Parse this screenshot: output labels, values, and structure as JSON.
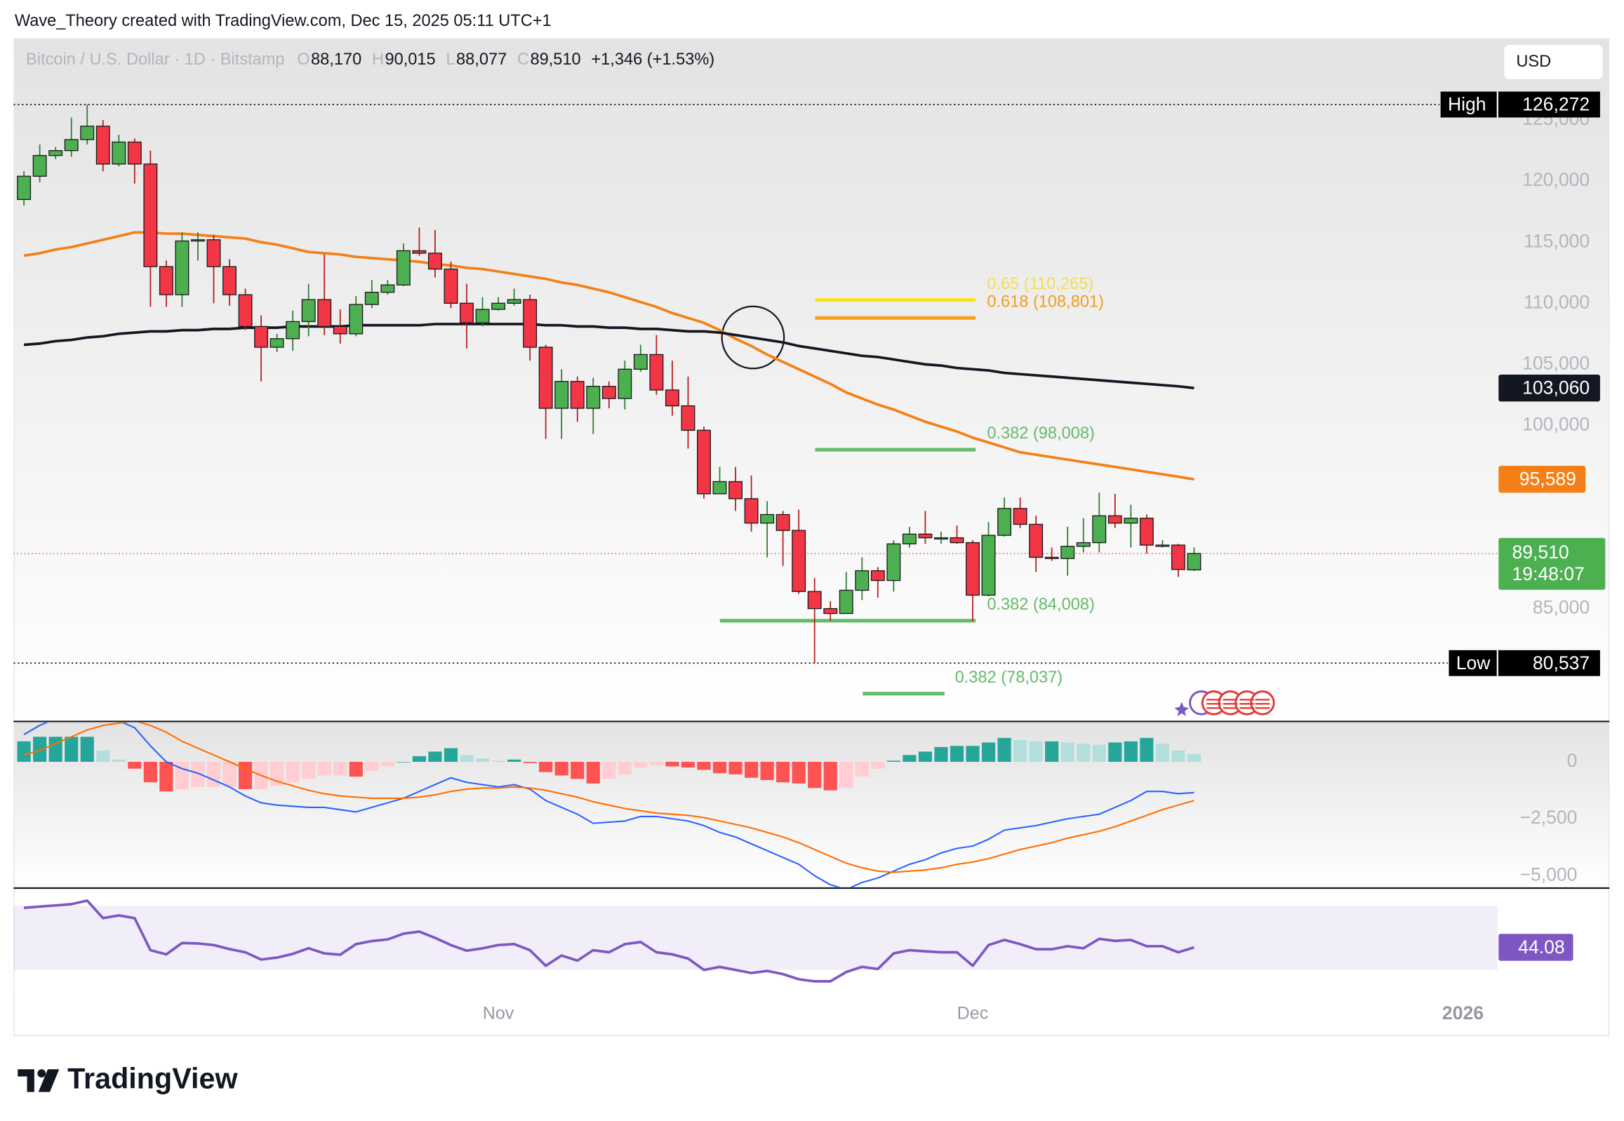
{
  "header": "Wave_Theory created with TradingView.com, Dec 15, 2025 05:11 UTC+1",
  "currency_button": "USD",
  "brand": "TradingView",
  "chart_data": [
    {
      "type": "candlestick",
      "title": "Bitcoin / U.S. Dollar · 1D · Bitstamp",
      "legend_items": [
        {
          "key": "O",
          "value": "88,170"
        },
        {
          "key": "H",
          "value": "90,015"
        },
        {
          "key": "L",
          "value": "88,077"
        },
        {
          "key": "C",
          "value": "89,510"
        }
      ],
      "change": "+1,346 (+1.53%)",
      "categories": [
        null,
        null,
        null,
        null,
        null,
        null,
        null,
        null,
        null,
        null,
        null,
        null,
        null,
        null,
        null,
        null,
        null,
        null,
        null,
        null,
        null,
        null,
        null,
        null,
        null,
        null,
        null,
        null,
        null,
        null,
        "Nov",
        null,
        null,
        null,
        null,
        null,
        null,
        null,
        null,
        null,
        null,
        null,
        null,
        null,
        null,
        null,
        null,
        null,
        null,
        null,
        null,
        null,
        null,
        null,
        null,
        null,
        null,
        null,
        null,
        null,
        "Dec",
        null,
        null,
        null,
        null,
        null,
        null,
        null,
        null,
        null,
        null,
        null,
        null,
        null,
        null
      ],
      "extra_x_label": "2026",
      "open": [
        118500,
        120400,
        122100,
        122500,
        123400,
        124500,
        121400,
        123200,
        121400,
        113000,
        110700,
        115100,
        115200,
        113000,
        110700,
        108100,
        106400,
        107100,
        108500,
        110300,
        108100,
        107500,
        109900,
        110900,
        111500,
        114300,
        114100,
        112800,
        110000,
        108400,
        109500,
        110000,
        110300,
        106400,
        101400,
        103600,
        101400,
        103200,
        102200,
        104600,
        105800,
        102900,
        101600,
        99600,
        94400,
        95400,
        94000,
        92000,
        92700,
        91400,
        86400,
        85000,
        84600,
        86500,
        88100,
        87300,
        90300,
        91100,
        90800,
        90800,
        90400,
        86100,
        91000,
        93200,
        91900,
        89200,
        89100,
        90100,
        90400,
        92600,
        92000,
        92400,
        90200,
        90200,
        88170
      ],
      "high": [
        120800,
        123000,
        122800,
        125200,
        126272,
        125000,
        123800,
        123500,
        122500,
        113500,
        115800,
        115800,
        115600,
        113600,
        111200,
        109000,
        107500,
        109400,
        111600,
        114000,
        109500,
        110600,
        111900,
        111900,
        114900,
        116200,
        116000,
        113400,
        111600,
        110500,
        110500,
        111200,
        110700,
        106600,
        104600,
        104000,
        103900,
        103600,
        105300,
        106600,
        107400,
        105300,
        104000,
        99900,
        96600,
        96600,
        95900,
        93800,
        93000,
        93100,
        87500,
        85600,
        88000,
        89200,
        88400,
        90600,
        91700,
        93000,
        91300,
        91800,
        90600,
        92100,
        94100,
        94100,
        92600,
        90000,
        91700,
        92400,
        94500,
        94400,
        93500,
        92700,
        90600,
        90300,
        90015
      ],
      "low": [
        118000,
        119900,
        121800,
        122000,
        123000,
        120800,
        121200,
        119800,
        109700,
        109700,
        109700,
        113500,
        110000,
        109800,
        107800,
        103600,
        106000,
        106100,
        107300,
        107400,
        106700,
        107300,
        109600,
        110700,
        111400,
        113900,
        112100,
        109600,
        106300,
        108100,
        109400,
        109800,
        105300,
        98900,
        98900,
        100300,
        99300,
        101400,
        101300,
        104400,
        102500,
        100800,
        98100,
        94000,
        94400,
        93000,
        91300,
        89200,
        88500,
        86200,
        80537,
        84000,
        84600,
        85700,
        85900,
        86400,
        90000,
        90300,
        90300,
        90300,
        84000,
        86000,
        90900,
        91600,
        88000,
        88900,
        87700,
        89600,
        89600,
        91600,
        90000,
        89500,
        90000,
        87600,
        88077
      ],
      "close": [
        120400,
        122100,
        122500,
        123400,
        124500,
        121400,
        123200,
        121400,
        113000,
        110700,
        115100,
        115200,
        113000,
        110700,
        108100,
        106400,
        107100,
        108500,
        110300,
        108100,
        107500,
        109900,
        110900,
        111500,
        114300,
        114100,
        112800,
        110000,
        108400,
        109500,
        110000,
        110300,
        106400,
        101400,
        103600,
        101400,
        103200,
        102200,
        104600,
        105800,
        102900,
        101600,
        99600,
        94400,
        95400,
        94000,
        92000,
        92700,
        91400,
        86400,
        85000,
        84600,
        86500,
        88100,
        87300,
        90300,
        91100,
        90800,
        90800,
        90400,
        86100,
        91000,
        93200,
        91900,
        89200,
        89100,
        90100,
        90400,
        92600,
        92000,
        92400,
        90200,
        90200,
        88200,
        89510
      ],
      "up_color": "#4caf50",
      "down_color": "#f23645",
      "ylim": [
        75760,
        131695
      ],
      "yticks": [
        {
          "value": 85000,
          "label": "85,000"
        },
        {
          "value": 100000,
          "label": "100,000"
        },
        {
          "value": 105000,
          "label": "105,000"
        },
        {
          "value": 110000,
          "label": "110,000"
        },
        {
          "value": 115000,
          "label": "115,000"
        },
        {
          "value": 120000,
          "label": "120,000"
        },
        {
          "value": 125000,
          "label": "125,000"
        }
      ],
      "moving_averages": [
        {
          "color": "#f57f17",
          "last_value_label": "95,589",
          "values": [
            113900,
            114100,
            114400,
            114600,
            114900,
            115200,
            115500,
            115800,
            115800,
            115700,
            115700,
            115600,
            115500,
            115400,
            115300,
            115000,
            114800,
            114500,
            114200,
            114100,
            114000,
            113800,
            113700,
            113600,
            113500,
            113400,
            113200,
            113100,
            112900,
            112800,
            112600,
            112400,
            112200,
            112000,
            111700,
            111500,
            111200,
            110900,
            110500,
            110100,
            109700,
            109200,
            108800,
            108400,
            107800,
            107100,
            106500,
            105800,
            105200,
            104600,
            104000,
            103400,
            102700,
            102200,
            101700,
            101300,
            100800,
            100300,
            99900,
            99500,
            99000,
            98600,
            98200,
            97800,
            97600,
            97400,
            97200,
            97000,
            96800,
            96600,
            96400,
            96200,
            96000,
            95800,
            95589
          ]
        },
        {
          "color": "#131722",
          "last_value_label": "103,060",
          "values": [
            106600,
            106700,
            106900,
            107000,
            107200,
            107300,
            107500,
            107600,
            107700,
            107700,
            107800,
            107800,
            107900,
            107900,
            108000,
            108000,
            108000,
            108100,
            108100,
            108100,
            108100,
            108200,
            108200,
            108200,
            108200,
            108200,
            108300,
            108300,
            108300,
            108300,
            108300,
            108300,
            108300,
            108200,
            108200,
            108100,
            108100,
            108000,
            108000,
            107900,
            107900,
            107800,
            107700,
            107700,
            107600,
            107400,
            107200,
            107000,
            106800,
            106500,
            106300,
            106100,
            105900,
            105700,
            105600,
            105400,
            105200,
            105000,
            104900,
            104700,
            104600,
            104500,
            104300,
            104200,
            104100,
            104000,
            103900,
            103800,
            103700,
            103600,
            103500,
            103400,
            103300,
            103200,
            103060
          ]
        }
      ],
      "last_price": {
        "label": "89,510",
        "countdown": "19:48:07",
        "color": "#4caf50",
        "line_color": "#f23645"
      },
      "high_marker": {
        "text": "High",
        "value": 126272,
        "label": "126,272"
      },
      "low_marker": {
        "text": "Low",
        "value": 80537,
        "label": "80,537"
      },
      "fib_levels": [
        {
          "value": 110265,
          "label": "0.65 (110,265)",
          "color": "#f9e11e",
          "text_color": "#f2dc5d"
        },
        {
          "value": 108801,
          "label": "0.618 (108,801)",
          "color": "#f5a31a",
          "text_color": "#f29d1b"
        },
        {
          "value": 98008,
          "label": "0.382 (98,008)",
          "color": "#66bb6a",
          "text_color": "#66bb6a"
        },
        {
          "value": 84008,
          "label": "0.382 (84,008)",
          "color": "#66bb6a",
          "text_color": "#66bb6a"
        },
        {
          "value": 78037,
          "label": "0.382 (78,037)",
          "color": "#66bb6a",
          "text_color": "#66bb6a"
        }
      ]
    },
    {
      "type": "macd",
      "histogram": [
        900,
        1100,
        1100,
        1100,
        1100,
        500,
        100,
        -300,
        -900,
        -1300,
        -1200,
        -1100,
        -1100,
        -1100,
        -1200,
        -1200,
        -1050,
        -900,
        -750,
        -600,
        -600,
        -650,
        -400,
        -200,
        0,
        250,
        450,
        600,
        300,
        150,
        50,
        100,
        -50,
        -450,
        -600,
        -750,
        -950,
        -750,
        -550,
        -250,
        -150,
        -200,
        -250,
        -350,
        -500,
        -550,
        -700,
        -800,
        -900,
        -950,
        -1150,
        -1250,
        -1150,
        -650,
        -300,
        50,
        300,
        450,
        650,
        700,
        700,
        850,
        1050,
        950,
        900,
        900,
        850,
        800,
        750,
        850,
        900,
        1050,
        800,
        500,
        350
      ],
      "macd": [
        1200,
        1600,
        1900,
        2200,
        2500,
        2100,
        1800,
        1500,
        700,
        0,
        -300,
        -500,
        -800,
        -1100,
        -1500,
        -1800,
        -1900,
        -1950,
        -2000,
        -2000,
        -2100,
        -2200,
        -2000,
        -1800,
        -1600,
        -1300,
        -1000,
        -700,
        -900,
        -1000,
        -1100,
        -1000,
        -1200,
        -1700,
        -2000,
        -2300,
        -2700,
        -2650,
        -2600,
        -2400,
        -2400,
        -2500,
        -2600,
        -2800,
        -3100,
        -3300,
        -3600,
        -3900,
        -4200,
        -4500,
        -5000,
        -5400,
        -5600,
        -5300,
        -5100,
        -4800,
        -4500,
        -4300,
        -4000,
        -3800,
        -3700,
        -3400,
        -3000,
        -2900,
        -2800,
        -2650,
        -2500,
        -2400,
        -2300,
        -2000,
        -1700,
        -1300,
        -1300,
        -1400,
        -1350
      ],
      "signal": [
        300,
        500,
        800,
        1100,
        1400,
        1600,
        1700,
        1800,
        1600,
        1300,
        900,
        600,
        300,
        0,
        -300,
        -600,
        -850,
        -1050,
        -1250,
        -1400,
        -1500,
        -1550,
        -1600,
        -1600,
        -1600,
        -1550,
        -1450,
        -1300,
        -1200,
        -1150,
        -1150,
        -1100,
        -1150,
        -1250,
        -1400,
        -1550,
        -1750,
        -1900,
        -2050,
        -2150,
        -2250,
        -2300,
        -2350,
        -2450,
        -2600,
        -2750,
        -2900,
        -3100,
        -3300,
        -3550,
        -3850,
        -4150,
        -4450,
        -4650,
        -4800,
        -4850,
        -4800,
        -4750,
        -4650,
        -4500,
        -4400,
        -4250,
        -4050,
        -3850,
        -3700,
        -3550,
        -3350,
        -3200,
        -3050,
        -2850,
        -2600,
        -2350,
        -2100,
        -1900,
        -1700
      ],
      "macd_color": "#2962ff",
      "signal_color": "#ff6d00",
      "histogram_colors": [
        "#26a69a",
        "#b2dfdb",
        "#ffcdd2",
        "#ff5252"
      ],
      "ylim": [
        -5545,
        1773
      ],
      "yticks": [
        0,
        {
          "value": -2500,
          "label": "−2,500"
        },
        {
          "value": -5000,
          "label": "−5,000"
        }
      ]
    },
    {
      "type": "line",
      "values": [
        68.7,
        69.5,
        70.2,
        71,
        73.2,
        62.3,
        64,
        62.3,
        42.3,
        39.7,
        46.8,
        46.5,
        45.5,
        43,
        41,
        36.5,
        37.7,
        40,
        43.5,
        40.3,
        39.5,
        46.1,
        48,
        49,
        52.6,
        53.9,
        50,
        45.5,
        42,
        43.5,
        45.5,
        46.1,
        42.3,
        32.6,
        39,
        35.8,
        42.3,
        41,
        46.1,
        47.4,
        41,
        39.7,
        37.1,
        30,
        31.9,
        30,
        28.1,
        29.4,
        27.4,
        24.2,
        22.9,
        22.9,
        28.7,
        31.9,
        30.6,
        40.3,
        42.3,
        41.6,
        41,
        41,
        32.6,
        45.5,
        48.7,
        46.1,
        42.9,
        42.9,
        44.8,
        43.5,
        49.4,
        48.1,
        48.7,
        44.8,
        44.8,
        41,
        44.08
      ],
      "color": "#7e57c2",
      "band": [
        30,
        70
      ],
      "ylim": [
        15.2,
        81
      ]
    }
  ]
}
